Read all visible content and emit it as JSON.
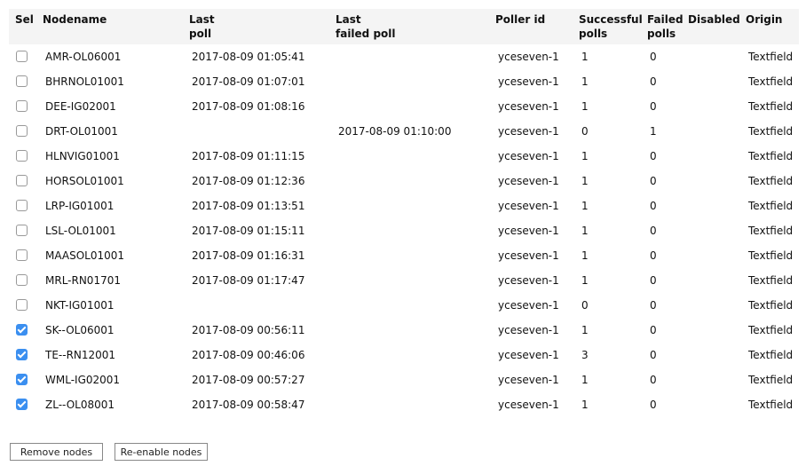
{
  "headers": {
    "sel": "Sel",
    "nodename": "Nodename",
    "last_poll_1": "Last",
    "last_poll_2": "poll",
    "last_failed_1": "Last",
    "last_failed_2": "failed poll",
    "poller": "Poller id",
    "succ_1": "Successful",
    "succ_2": "polls",
    "failed_1": "Failed",
    "failed_2": "polls",
    "disabled": "Disabled",
    "origin": "Origin"
  },
  "rows": [
    {
      "selected": false,
      "nodename": "AMR-OL06001",
      "last_poll": "2017-08-09 01:05:41",
      "last_failed": "",
      "poller": "yceseven-1",
      "successful": "1",
      "failed": "0",
      "disabled": "",
      "origin": "Textfield"
    },
    {
      "selected": false,
      "nodename": "BHRNOL01001",
      "last_poll": "2017-08-09 01:07:01",
      "last_failed": "",
      "poller": "yceseven-1",
      "successful": "1",
      "failed": "0",
      "disabled": "",
      "origin": "Textfield"
    },
    {
      "selected": false,
      "nodename": "DEE-IG02001",
      "last_poll": "2017-08-09 01:08:16",
      "last_failed": "",
      "poller": "yceseven-1",
      "successful": "1",
      "failed": "0",
      "disabled": "",
      "origin": "Textfield"
    },
    {
      "selected": false,
      "nodename": "DRT-OL01001",
      "last_poll": "",
      "last_failed": "2017-08-09 01:10:00",
      "poller": "yceseven-1",
      "successful": "0",
      "failed": "1",
      "disabled": "",
      "origin": "Textfield"
    },
    {
      "selected": false,
      "nodename": "HLNVIG01001",
      "last_poll": "2017-08-09 01:11:15",
      "last_failed": "",
      "poller": "yceseven-1",
      "successful": "1",
      "failed": "0",
      "disabled": "",
      "origin": "Textfield"
    },
    {
      "selected": false,
      "nodename": "HORSOL01001",
      "last_poll": "2017-08-09 01:12:36",
      "last_failed": "",
      "poller": "yceseven-1",
      "successful": "1",
      "failed": "0",
      "disabled": "",
      "origin": "Textfield"
    },
    {
      "selected": false,
      "nodename": "LRP-IG01001",
      "last_poll": "2017-08-09 01:13:51",
      "last_failed": "",
      "poller": "yceseven-1",
      "successful": "1",
      "failed": "0",
      "disabled": "",
      "origin": "Textfield"
    },
    {
      "selected": false,
      "nodename": "LSL-OL01001",
      "last_poll": "2017-08-09 01:15:11",
      "last_failed": "",
      "poller": "yceseven-1",
      "successful": "1",
      "failed": "0",
      "disabled": "",
      "origin": "Textfield"
    },
    {
      "selected": false,
      "nodename": "MAASOL01001",
      "last_poll": "2017-08-09 01:16:31",
      "last_failed": "",
      "poller": "yceseven-1",
      "successful": "1",
      "failed": "0",
      "disabled": "",
      "origin": "Textfield"
    },
    {
      "selected": false,
      "nodename": "MRL-RN01701",
      "last_poll": "2017-08-09 01:17:47",
      "last_failed": "",
      "poller": "yceseven-1",
      "successful": "1",
      "failed": "0",
      "disabled": "",
      "origin": "Textfield"
    },
    {
      "selected": false,
      "nodename": "NKT-IG01001",
      "last_poll": "",
      "last_failed": "",
      "poller": "yceseven-1",
      "successful": "0",
      "failed": "0",
      "disabled": "",
      "origin": "Textfield"
    },
    {
      "selected": true,
      "nodename": "SK--OL06001",
      "last_poll": "2017-08-09 00:56:11",
      "last_failed": "",
      "poller": "yceseven-1",
      "successful": "1",
      "failed": "0",
      "disabled": "",
      "origin": "Textfield"
    },
    {
      "selected": true,
      "nodename": "TE--RN12001",
      "last_poll": "2017-08-09 00:46:06",
      "last_failed": "",
      "poller": "yceseven-1",
      "successful": "3",
      "failed": "0",
      "disabled": "",
      "origin": "Textfield"
    },
    {
      "selected": true,
      "nodename": "WML-IG02001",
      "last_poll": "2017-08-09 00:57:27",
      "last_failed": "",
      "poller": "yceseven-1",
      "successful": "1",
      "failed": "0",
      "disabled": "",
      "origin": "Textfield"
    },
    {
      "selected": true,
      "nodename": "ZL--OL08001",
      "last_poll": "2017-08-09 00:58:47",
      "last_failed": "",
      "poller": "yceseven-1",
      "successful": "1",
      "failed": "0",
      "disabled": "",
      "origin": "Textfield"
    }
  ],
  "buttons": {
    "remove": "Remove nodes",
    "reenable": "Re-enable nodes"
  }
}
